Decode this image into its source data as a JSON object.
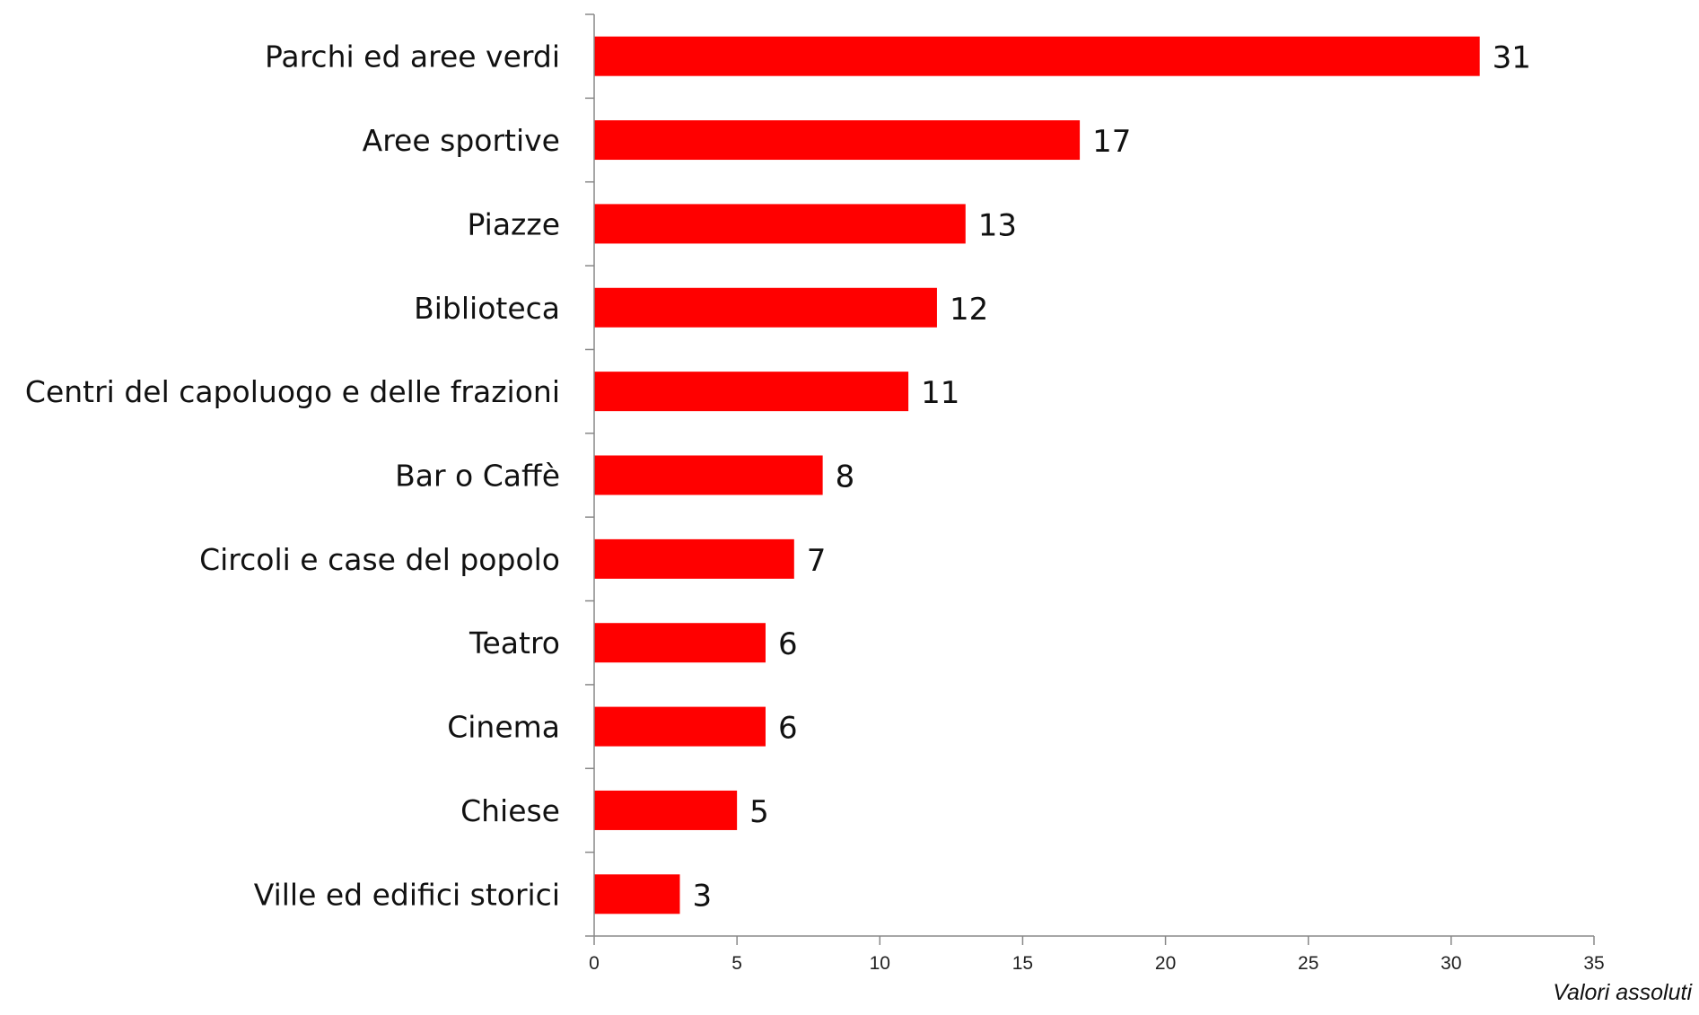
{
  "chart_data": {
    "type": "bar",
    "orientation": "horizontal",
    "categories": [
      "Parchi ed aree verdi",
      "Aree sportive",
      "Piazze",
      "Biblioteca",
      "Centri del capoluogo e delle frazioni",
      "Bar o Caffè",
      "Circoli e case del popolo",
      "Teatro",
      "Cinema",
      "Chiese",
      "Ville ed edifici storici"
    ],
    "values": [
      31,
      17,
      13,
      12,
      11,
      8,
      7,
      6,
      6,
      5,
      3
    ],
    "data_labels": [
      "31",
      "17",
      "13",
      "12",
      "11",
      "8",
      "7",
      "6",
      "6",
      "5",
      "3"
    ],
    "xticks": [
      0,
      5,
      10,
      15,
      20,
      25,
      30,
      35
    ],
    "xlim": [
      0,
      35
    ],
    "title": "",
    "xlabel": "",
    "ylabel": "",
    "bar_color": "#ff0000",
    "grid": false,
    "legend": "none"
  },
  "note": "Valori assoluti"
}
